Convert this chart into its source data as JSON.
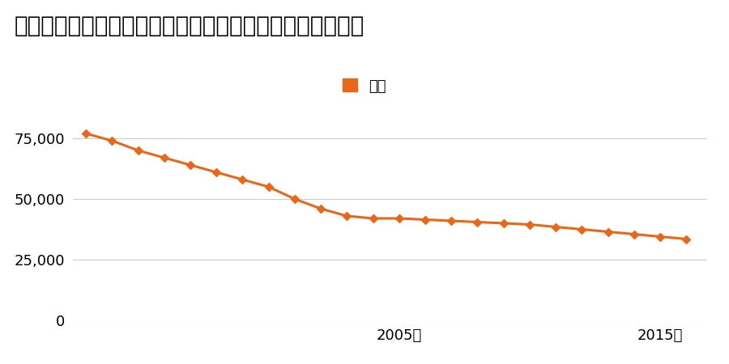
{
  "title": "岐阜県安八郡神戸町大字安次字臼井田１３６番の地価推移",
  "legend_label": "価格",
  "years": [
    1993,
    1994,
    1995,
    1996,
    1997,
    1998,
    1999,
    2000,
    2001,
    2002,
    2003,
    2004,
    2005,
    2006,
    2007,
    2008,
    2009,
    2010,
    2011,
    2012,
    2013,
    2014,
    2015,
    2016
  ],
  "values": [
    77000,
    74000,
    70000,
    67000,
    64000,
    61000,
    58000,
    55000,
    50000,
    46000,
    43000,
    42000,
    42000,
    41500,
    41000,
    40500,
    40000,
    39500,
    38500,
    37500,
    36500,
    35500,
    34500,
    33500
  ],
  "line_color": "#e8681a",
  "marker_color": "#e8681a",
  "legend_square_color": "#e8681a",
  "background_color": "#ffffff",
  "grid_color": "#cccccc",
  "title_fontsize": 20,
  "legend_fontsize": 13,
  "tick_fontsize": 13,
  "ylim": [
    0,
    90000
  ],
  "yticks": [
    0,
    25000,
    50000,
    75000
  ],
  "xtick_labels": [
    "2005年",
    "2015年"
  ],
  "xtick_positions": [
    2005,
    2015
  ]
}
